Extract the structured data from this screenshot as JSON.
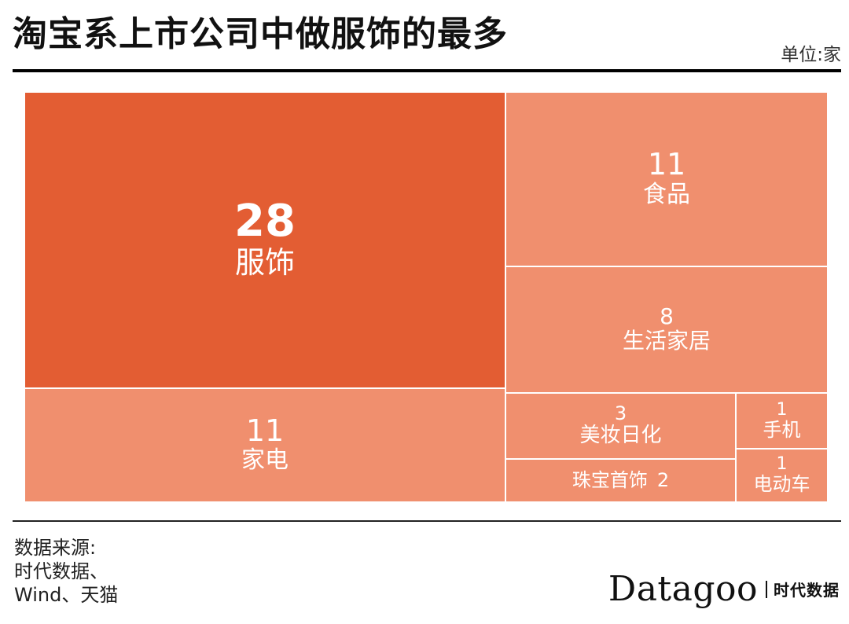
{
  "header": {
    "title": "淘宝系上市公司中做服饰的最多",
    "unit": "单位:家"
  },
  "colors": {
    "primary": "#E35D33",
    "secondary": "#F08F6E"
  },
  "chart_data": {
    "type": "treemap",
    "title": "淘宝系上市公司中做服饰的最多",
    "unit": "家",
    "items": [
      {
        "label": "服饰",
        "value": 28,
        "value_text": "28"
      },
      {
        "label": "家电",
        "value": 11,
        "value_text": "11"
      },
      {
        "label": "食品",
        "value": 11,
        "value_text": "11"
      },
      {
        "label": "生活家居",
        "value": 8,
        "value_text": "8"
      },
      {
        "label": "美妆日化",
        "value": 3,
        "value_text": "3"
      },
      {
        "label": "珠宝首饰",
        "value": 2,
        "value_text": "2"
      },
      {
        "label": "手机",
        "value": 1,
        "value_text": "1"
      },
      {
        "label": "电动车",
        "value": 1,
        "value_text": "1"
      }
    ]
  },
  "footer": {
    "source_lines": [
      "数据来源:",
      "时代数据、",
      "Wind、天猫"
    ],
    "logo_word": "Datagoo",
    "logo_cn": "时代数据"
  }
}
